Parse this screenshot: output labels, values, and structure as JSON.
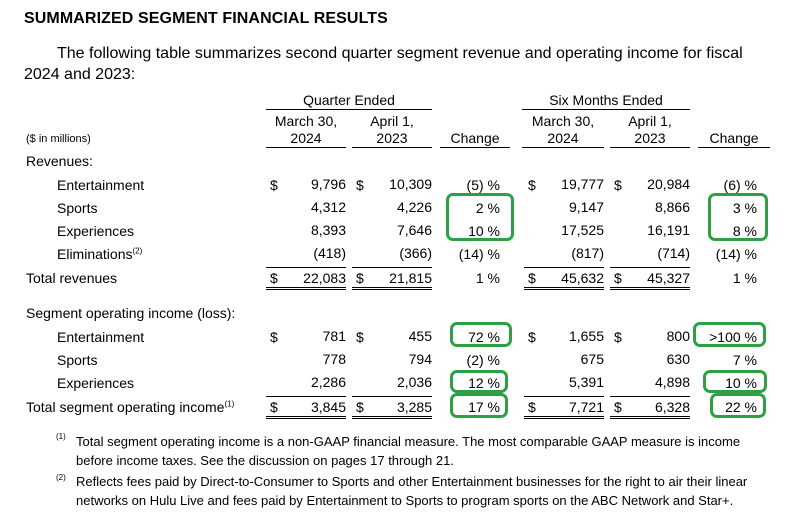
{
  "title": "SUMMARIZED SEGMENT FINANCIAL RESULTS",
  "intro": "The following table summarizes second quarter segment revenue and operating income for fiscal 2024 and 2023:",
  "headers": {
    "quarter_group": "Quarter Ended",
    "six_group": "Six Months Ended",
    "q_col1_l1": "March 30,",
    "q_col1_l2": "2024",
    "q_col2_l1": "April 1,",
    "q_col2_l2": "2023",
    "change": "Change",
    "s_col1_l1": "March 30,",
    "s_col1_l2": "2024",
    "s_col2_l1": "April 1,",
    "s_col2_l2": "2023",
    "units": "($ in millions)"
  },
  "revenues_label": "Revenues:",
  "revenues": [
    {
      "label": "Entertainment",
      "sup": "",
      "cur1": "$",
      "q1": "9,796",
      "cur2": "$",
      "q2": "10,309",
      "qchg": "(5) %",
      "cur3": "$",
      "s1": "19,777",
      "cur4": "$",
      "s2": "20,984",
      "schg": "(6) %"
    },
    {
      "label": "Sports",
      "sup": "",
      "cur1": "",
      "q1": "4,312",
      "cur2": "",
      "q2": "4,226",
      "qchg": "2 %",
      "cur3": "",
      "s1": "9,147",
      "cur4": "",
      "s2": "8,866",
      "schg": "3 %"
    },
    {
      "label": "Experiences",
      "sup": "",
      "cur1": "",
      "q1": "8,393",
      "cur2": "",
      "q2": "7,646",
      "qchg": "10 %",
      "cur3": "",
      "s1": "17,525",
      "cur4": "",
      "s2": "16,191",
      "schg": "8 %"
    },
    {
      "label": "Eliminations",
      "sup": "(2)",
      "cur1": "",
      "q1": "(418)",
      "cur2": "",
      "q2": "(366)",
      "qchg": "(14) %",
      "cur3": "",
      "s1": "(817)",
      "cur4": "",
      "s2": "(714)",
      "schg": "(14) %"
    }
  ],
  "total_revenues": {
    "label": "Total revenues",
    "cur1": "$",
    "q1": "22,083",
    "cur2": "$",
    "q2": "21,815",
    "qchg": "1 %",
    "cur3": "$",
    "s1": "45,632",
    "cur4": "$",
    "s2": "45,327",
    "schg": "1 %"
  },
  "soi_label": "Segment operating income (loss):",
  "soi": [
    {
      "label": "Entertainment",
      "cur1": "$",
      "q1": "781",
      "cur2": "$",
      "q2": "455",
      "qchg": "72 %",
      "cur3": "$",
      "s1": "1,655",
      "cur4": "$",
      "s2": "800",
      "schg": ">100 %"
    },
    {
      "label": "Sports",
      "cur1": "",
      "q1": "778",
      "cur2": "",
      "q2": "794",
      "qchg": "(2) %",
      "cur3": "",
      "s1": "675",
      "cur4": "",
      "s2": "630",
      "schg": "7 %"
    },
    {
      "label": "Experiences",
      "cur1": "",
      "q1": "2,286",
      "cur2": "",
      "q2": "2,036",
      "qchg": "12 %",
      "cur3": "",
      "s1": "5,391",
      "cur4": "",
      "s2": "4,898",
      "schg": "10 %"
    }
  ],
  "total_soi": {
    "label": "Total segment operating income",
    "sup": "(1)",
    "cur1": "$",
    "q1": "3,845",
    "cur2": "$",
    "q2": "3,285",
    "qchg": "17 %",
    "cur3": "$",
    "s1": "7,721",
    "cur4": "$",
    "s2": "6,328",
    "schg": "22 %"
  },
  "footnotes": [
    {
      "mark": "(1)",
      "text": "Total segment operating income is a non-GAAP financial measure. The most comparable GAAP measure is income before income taxes. See the discussion on pages 17 through 21."
    },
    {
      "mark": "(2)",
      "text": "Reflects fees paid by Direct-to-Consumer to Sports and other Entertainment businesses for the right to air their linear networks on Hulu Live and fees paid by Entertainment to Sports to program sports on the ABC Network and Star+."
    }
  ],
  "colors": {
    "highlight": "#2ea043"
  }
}
